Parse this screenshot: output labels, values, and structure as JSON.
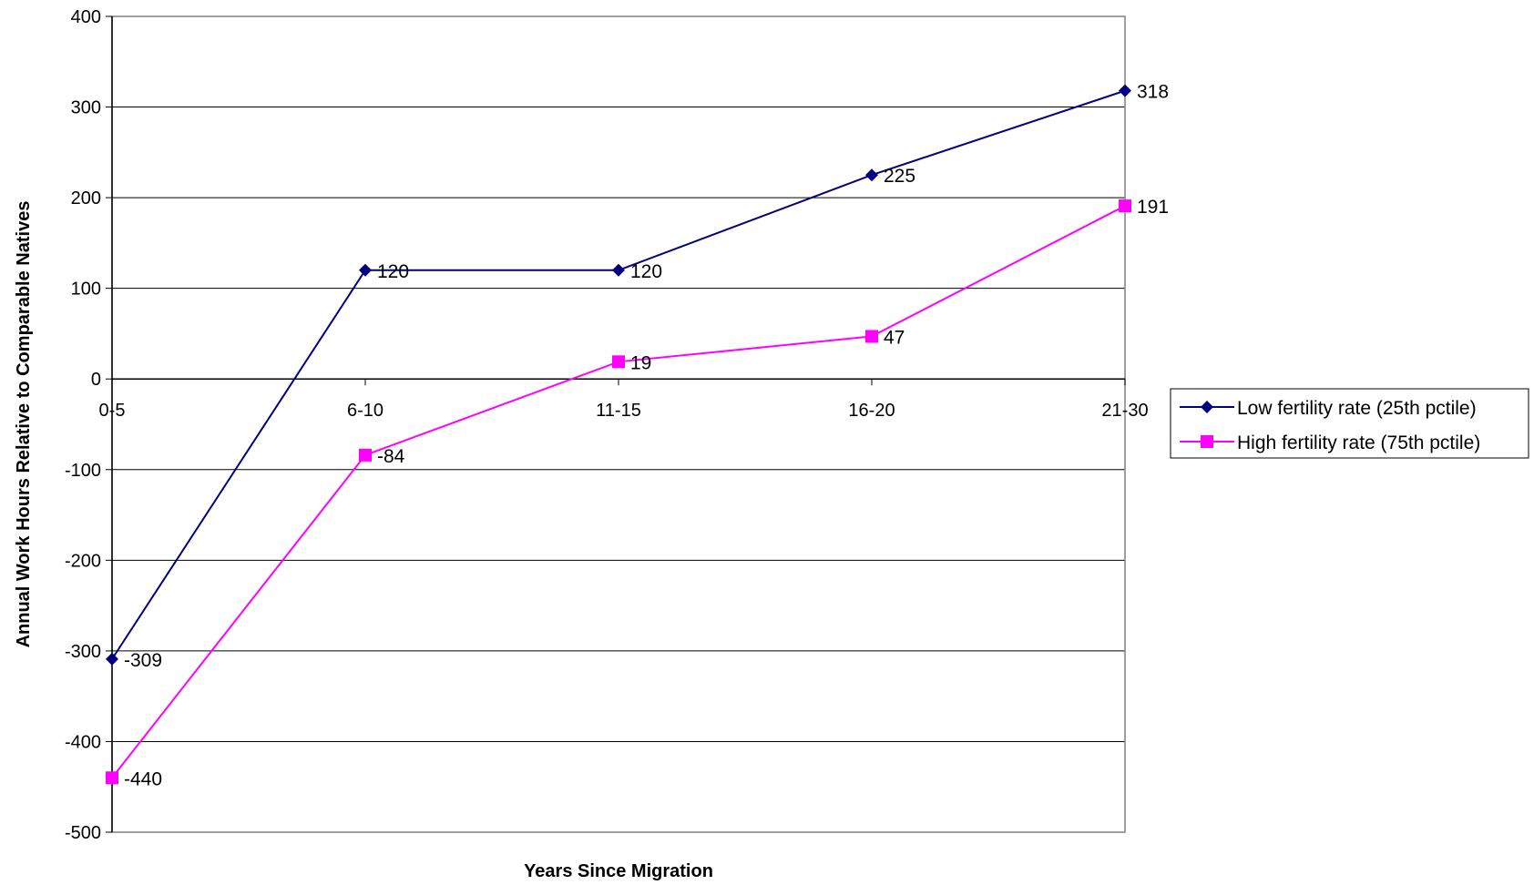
{
  "chart_data": {
    "type": "line",
    "title": "",
    "xlabel": "Years Since Migration",
    "ylabel": "Annual Work Hours Relative to Comparable Natives",
    "categories": [
      "0-5",
      "6-10",
      "11-15",
      "16-20",
      "21-30"
    ],
    "ylim": [
      -500,
      400
    ],
    "yticks": [
      400,
      300,
      200,
      100,
      0,
      -100,
      -200,
      -300,
      -400,
      -500
    ],
    "grid": true,
    "legend_position": "right",
    "series": [
      {
        "name": "Low fertility rate (25th pctile)",
        "values": [
          -309,
          120,
          120,
          225,
          318
        ],
        "color": "#000080",
        "marker": "diamond"
      },
      {
        "name": "High fertility rate (75th pctile)",
        "values": [
          -440,
          -84,
          19,
          47,
          191
        ],
        "color": "#ff00ff",
        "marker": "square"
      }
    ]
  }
}
